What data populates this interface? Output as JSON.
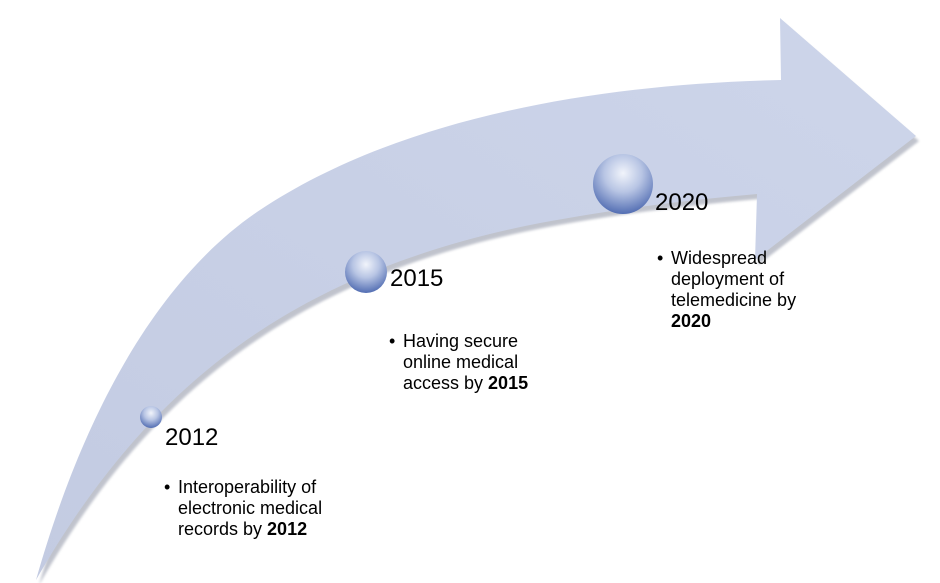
{
  "colors": {
    "arrow_fill": "#c7cfe5",
    "arrow_shadow": "#8d93a4",
    "circle_highlight": "#e8edf7",
    "circle_shadow": "#4f6bb0"
  },
  "milestones": [
    {
      "year": "2012",
      "desc_pre": "Interoperability of electronic medical records by ",
      "desc_bold": "2012"
    },
    {
      "year": "2015",
      "desc_pre": "Having secure online medical access by ",
      "desc_bold": "2015"
    },
    {
      "year": "2020",
      "desc_pre": "Widespread deployment of telemedicine by ",
      "desc_bold": "2020"
    }
  ]
}
